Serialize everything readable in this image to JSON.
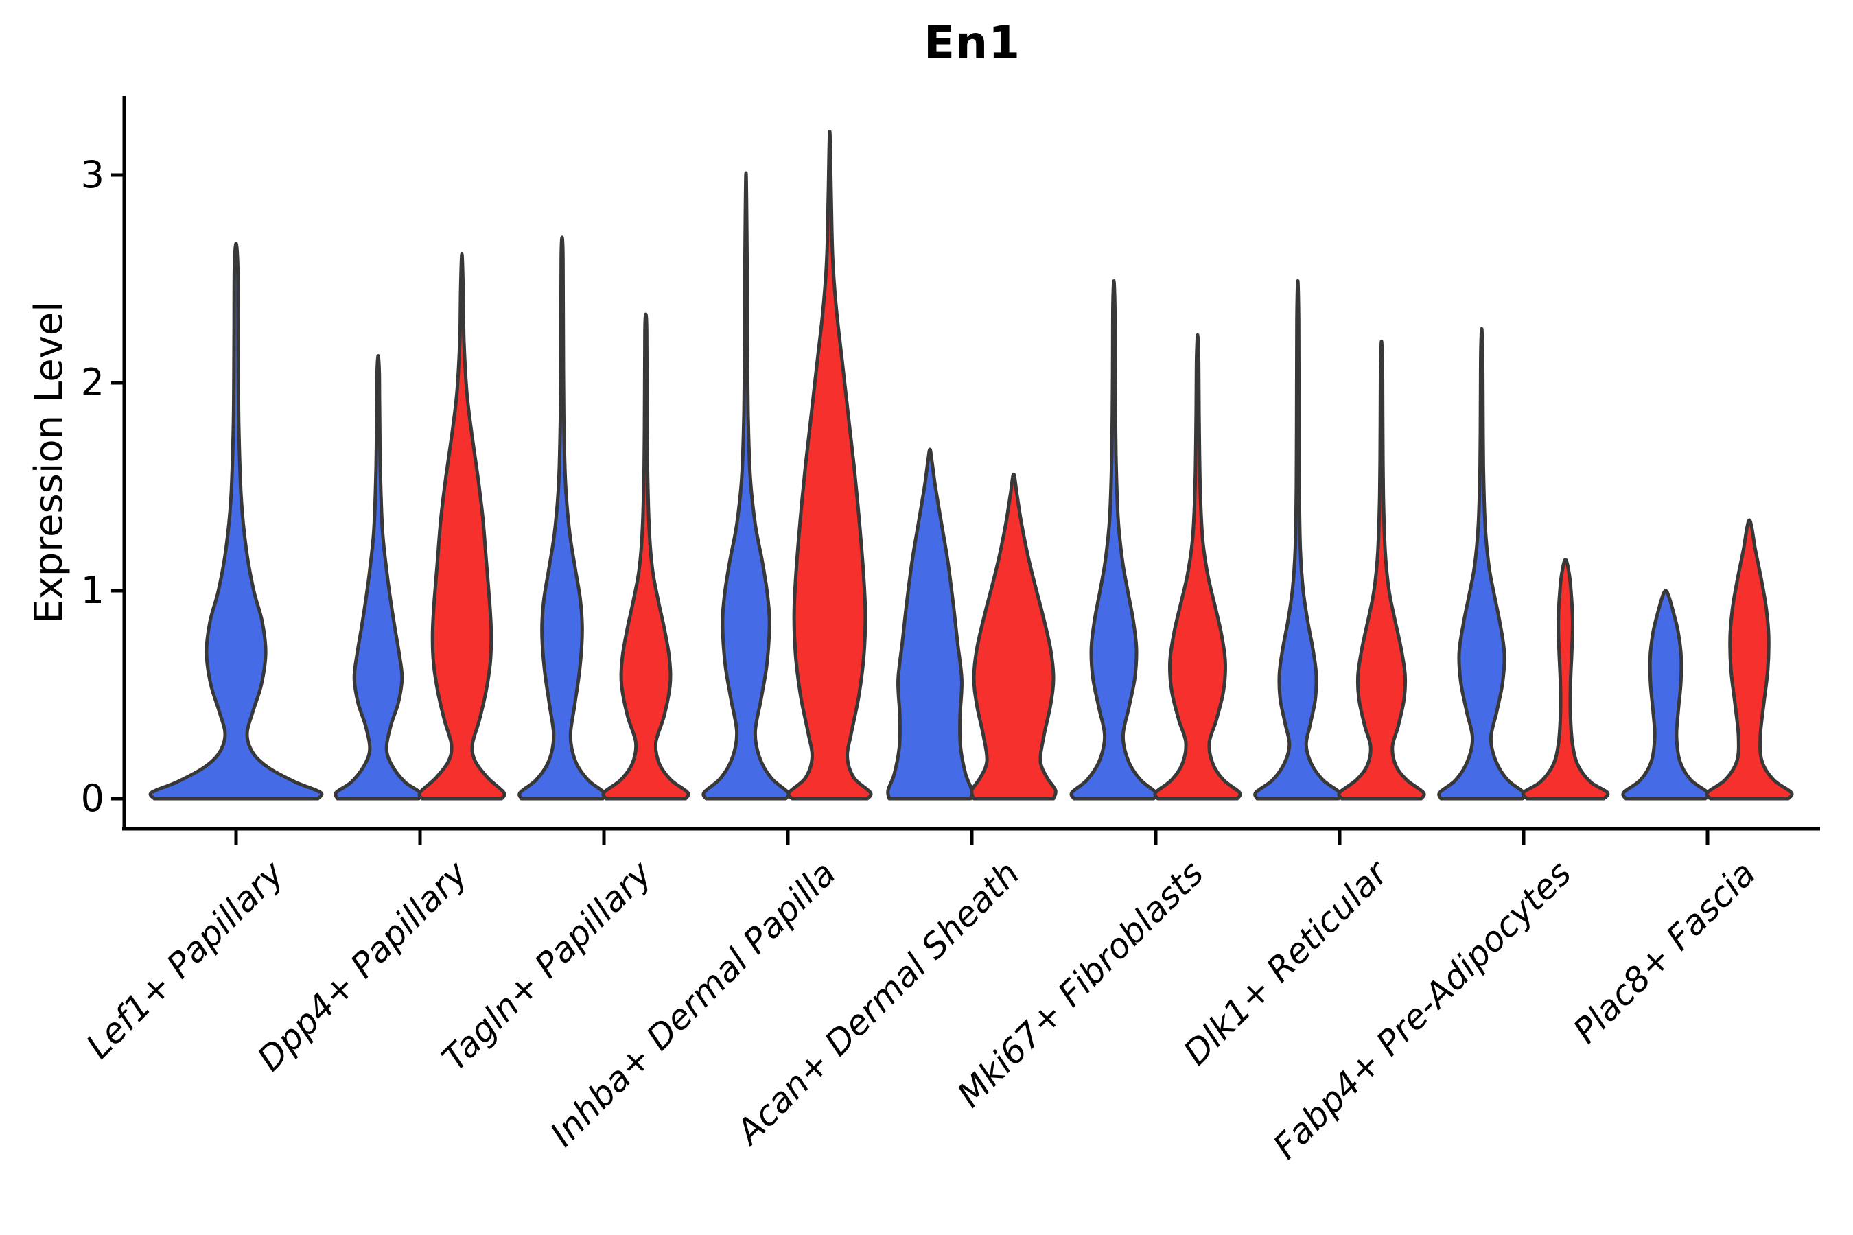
{
  "title": "En1",
  "axes": {
    "ylabel": "Expression Level",
    "y_tick_labels": [
      "0",
      "1",
      "2",
      "3"
    ],
    "y_tick_values": [
      0,
      1,
      2,
      3
    ]
  },
  "colors": {
    "blue_fill": "#466BE6",
    "red_fill": "#F5302D",
    "violin_outline": "#383838",
    "axis_color": "#000000",
    "background": "#ffffff"
  },
  "chart_data": {
    "type": "violin",
    "title": "En1",
    "ylabel": "Expression Level",
    "y_range": [
      0,
      3.42
    ],
    "grid": false,
    "legend": false,
    "split": [
      "blue",
      "red"
    ],
    "categories": [
      "Lef1+ Papillary",
      "Dpp4+ Papillary",
      "Tagln+ Papillary",
      "Inhba+ Dermal Papilla",
      "Acan+ Dermal Sheath",
      "Mki67+ Fibroblasts",
      "Dlk1+ Reticular",
      "Fabp4+ Pre-Adipocytes",
      "Plac8+ Fascia"
    ],
    "violins": [
      {
        "position": 0,
        "category": "Lef1+ Papillary",
        "split": "blue",
        "layout": "full",
        "max_expression": 2.67,
        "profile": [
          [
            0,
            0.97
          ],
          [
            0.03,
            1.0
          ],
          [
            0.08,
            0.7
          ],
          [
            0.15,
            0.38
          ],
          [
            0.22,
            0.2
          ],
          [
            0.31,
            0.13
          ],
          [
            0.42,
            0.2
          ],
          [
            0.55,
            0.3
          ],
          [
            0.7,
            0.35
          ],
          [
            0.85,
            0.31
          ],
          [
            1.0,
            0.21
          ],
          [
            1.2,
            0.12
          ],
          [
            1.45,
            0.06
          ],
          [
            1.8,
            0.032
          ],
          [
            2.2,
            0.024
          ],
          [
            2.55,
            0.02
          ],
          [
            2.67,
            0
          ]
        ]
      },
      {
        "position": 1,
        "category": "Dpp4+ Papillary",
        "split": "blue",
        "layout": "left",
        "max_expression": 2.13,
        "profile": [
          [
            0,
            0.97
          ],
          [
            0.03,
            1.0
          ],
          [
            0.08,
            0.64
          ],
          [
            0.16,
            0.33
          ],
          [
            0.24,
            0.2
          ],
          [
            0.35,
            0.3
          ],
          [
            0.46,
            0.48
          ],
          [
            0.58,
            0.57
          ],
          [
            0.7,
            0.5
          ],
          [
            0.82,
            0.4
          ],
          [
            0.95,
            0.3
          ],
          [
            1.1,
            0.2
          ],
          [
            1.3,
            0.1
          ],
          [
            1.6,
            0.05
          ],
          [
            1.9,
            0.032
          ],
          [
            2.05,
            0.026
          ],
          [
            2.13,
            0
          ]
        ]
      },
      {
        "position": 1,
        "category": "Dpp4+ Papillary",
        "split": "red",
        "layout": "right",
        "max_expression": 2.62,
        "profile": [
          [
            0,
            0.95
          ],
          [
            0.03,
            1.0
          ],
          [
            0.1,
            0.62
          ],
          [
            0.18,
            0.32
          ],
          [
            0.26,
            0.25
          ],
          [
            0.38,
            0.42
          ],
          [
            0.52,
            0.58
          ],
          [
            0.66,
            0.68
          ],
          [
            0.8,
            0.7
          ],
          [
            0.95,
            0.66
          ],
          [
            1.15,
            0.58
          ],
          [
            1.35,
            0.5
          ],
          [
            1.55,
            0.38
          ],
          [
            1.75,
            0.24
          ],
          [
            1.95,
            0.12
          ],
          [
            2.2,
            0.05
          ],
          [
            2.45,
            0.03
          ],
          [
            2.62,
            0
          ]
        ]
      },
      {
        "position": 2,
        "category": "Tagln+ Papillary",
        "split": "blue",
        "layout": "left",
        "max_expression": 2.7,
        "profile": [
          [
            0,
            0.97
          ],
          [
            0.03,
            1.0
          ],
          [
            0.09,
            0.62
          ],
          [
            0.18,
            0.32
          ],
          [
            0.3,
            0.2
          ],
          [
            0.45,
            0.3
          ],
          [
            0.62,
            0.42
          ],
          [
            0.8,
            0.48
          ],
          [
            0.95,
            0.44
          ],
          [
            1.1,
            0.32
          ],
          [
            1.28,
            0.18
          ],
          [
            1.52,
            0.08
          ],
          [
            1.85,
            0.04
          ],
          [
            2.25,
            0.028
          ],
          [
            2.6,
            0.022
          ],
          [
            2.7,
            0
          ]
        ]
      },
      {
        "position": 2,
        "category": "Tagln+ Papillary",
        "split": "red",
        "layout": "right",
        "max_expression": 2.33,
        "profile": [
          [
            0,
            0.95
          ],
          [
            0.03,
            1.0
          ],
          [
            0.09,
            0.6
          ],
          [
            0.17,
            0.32
          ],
          [
            0.27,
            0.24
          ],
          [
            0.4,
            0.44
          ],
          [
            0.55,
            0.58
          ],
          [
            0.68,
            0.56
          ],
          [
            0.82,
            0.44
          ],
          [
            0.95,
            0.3
          ],
          [
            1.1,
            0.16
          ],
          [
            1.3,
            0.08
          ],
          [
            1.6,
            0.04
          ],
          [
            1.95,
            0.028
          ],
          [
            2.25,
            0.022
          ],
          [
            2.33,
            0
          ]
        ]
      },
      {
        "position": 3,
        "category": "Inhba+ Dermal Papilla",
        "split": "blue",
        "layout": "left",
        "max_expression": 3.01,
        "profile": [
          [
            0,
            0.95
          ],
          [
            0.03,
            1.0
          ],
          [
            0.1,
            0.6
          ],
          [
            0.2,
            0.32
          ],
          [
            0.32,
            0.22
          ],
          [
            0.48,
            0.36
          ],
          [
            0.65,
            0.5
          ],
          [
            0.85,
            0.56
          ],
          [
            1.0,
            0.5
          ],
          [
            1.15,
            0.38
          ],
          [
            1.32,
            0.22
          ],
          [
            1.55,
            0.1
          ],
          [
            1.85,
            0.05
          ],
          [
            2.2,
            0.03
          ],
          [
            2.6,
            0.024
          ],
          [
            3.01,
            0
          ]
        ]
      },
      {
        "position": 3,
        "category": "Inhba+ Dermal Papilla",
        "split": "red",
        "layout": "right",
        "max_expression": 3.21,
        "profile": [
          [
            0,
            0.9
          ],
          [
            0.03,
            0.97
          ],
          [
            0.1,
            0.58
          ],
          [
            0.2,
            0.42
          ],
          [
            0.32,
            0.52
          ],
          [
            0.5,
            0.7
          ],
          [
            0.7,
            0.82
          ],
          [
            0.9,
            0.85
          ],
          [
            1.1,
            0.8
          ],
          [
            1.35,
            0.7
          ],
          [
            1.6,
            0.58
          ],
          [
            1.85,
            0.44
          ],
          [
            2.1,
            0.3
          ],
          [
            2.35,
            0.16
          ],
          [
            2.6,
            0.07
          ],
          [
            2.9,
            0.035
          ],
          [
            3.21,
            0
          ]
        ]
      },
      {
        "position": 4,
        "category": "Acan+ Dermal Sheath",
        "split": "blue",
        "layout": "left",
        "max_expression": 1.68,
        "profile": [
          [
            0,
            0.97
          ],
          [
            0.04,
            1.0
          ],
          [
            0.12,
            0.85
          ],
          [
            0.25,
            0.73
          ],
          [
            0.4,
            0.72
          ],
          [
            0.57,
            0.76
          ],
          [
            0.75,
            0.66
          ],
          [
            0.95,
            0.55
          ],
          [
            1.15,
            0.42
          ],
          [
            1.33,
            0.27
          ],
          [
            1.5,
            0.13
          ],
          [
            1.62,
            0.05
          ],
          [
            1.68,
            0
          ]
        ]
      },
      {
        "position": 4,
        "category": "Acan+ Dermal Sheath",
        "split": "red",
        "layout": "right",
        "max_expression": 1.56,
        "profile": [
          [
            0,
            0.95
          ],
          [
            0.04,
            1.0
          ],
          [
            0.1,
            0.8
          ],
          [
            0.18,
            0.64
          ],
          [
            0.3,
            0.72
          ],
          [
            0.45,
            0.88
          ],
          [
            0.58,
            0.95
          ],
          [
            0.72,
            0.88
          ],
          [
            0.88,
            0.7
          ],
          [
            1.02,
            0.52
          ],
          [
            1.16,
            0.35
          ],
          [
            1.32,
            0.19
          ],
          [
            1.46,
            0.08
          ],
          [
            1.56,
            0
          ]
        ]
      },
      {
        "position": 5,
        "category": "Mki67+ Fibroblasts",
        "split": "blue",
        "layout": "left",
        "max_expression": 2.49,
        "profile": [
          [
            0,
            0.95
          ],
          [
            0.03,
            1.0
          ],
          [
            0.09,
            0.64
          ],
          [
            0.18,
            0.35
          ],
          [
            0.3,
            0.22
          ],
          [
            0.44,
            0.36
          ],
          [
            0.58,
            0.5
          ],
          [
            0.72,
            0.54
          ],
          [
            0.86,
            0.46
          ],
          [
            1.0,
            0.33
          ],
          [
            1.15,
            0.2
          ],
          [
            1.35,
            0.1
          ],
          [
            1.65,
            0.05
          ],
          [
            2.05,
            0.03
          ],
          [
            2.35,
            0.024
          ],
          [
            2.49,
            0
          ]
        ]
      },
      {
        "position": 5,
        "category": "Mki67+ Fibroblasts",
        "split": "red",
        "layout": "right",
        "max_expression": 2.23,
        "profile": [
          [
            0,
            0.95
          ],
          [
            0.03,
            1.0
          ],
          [
            0.09,
            0.62
          ],
          [
            0.17,
            0.36
          ],
          [
            0.27,
            0.28
          ],
          [
            0.38,
            0.45
          ],
          [
            0.52,
            0.62
          ],
          [
            0.66,
            0.66
          ],
          [
            0.8,
            0.56
          ],
          [
            0.94,
            0.4
          ],
          [
            1.08,
            0.24
          ],
          [
            1.25,
            0.12
          ],
          [
            1.5,
            0.06
          ],
          [
            1.85,
            0.035
          ],
          [
            2.1,
            0.026
          ],
          [
            2.23,
            0
          ]
        ]
      },
      {
        "position": 6,
        "category": "Dlk1+ Reticular",
        "split": "blue",
        "layout": "left",
        "max_expression": 2.49,
        "profile": [
          [
            0,
            0.97
          ],
          [
            0.03,
            1.0
          ],
          [
            0.09,
            0.6
          ],
          [
            0.17,
            0.32
          ],
          [
            0.26,
            0.2
          ],
          [
            0.36,
            0.3
          ],
          [
            0.48,
            0.42
          ],
          [
            0.6,
            0.44
          ],
          [
            0.72,
            0.36
          ],
          [
            0.85,
            0.24
          ],
          [
            1.0,
            0.13
          ],
          [
            1.2,
            0.06
          ],
          [
            1.5,
            0.035
          ],
          [
            1.95,
            0.026
          ],
          [
            2.3,
            0.022
          ],
          [
            2.49,
            0
          ]
        ]
      },
      {
        "position": 6,
        "category": "Dlk1+ Reticular",
        "split": "red",
        "layout": "right",
        "max_expression": 2.2,
        "profile": [
          [
            0,
            0.95
          ],
          [
            0.03,
            1.0
          ],
          [
            0.09,
            0.6
          ],
          [
            0.16,
            0.34
          ],
          [
            0.25,
            0.26
          ],
          [
            0.35,
            0.4
          ],
          [
            0.48,
            0.54
          ],
          [
            0.6,
            0.56
          ],
          [
            0.73,
            0.46
          ],
          [
            0.86,
            0.32
          ],
          [
            1.0,
            0.18
          ],
          [
            1.18,
            0.09
          ],
          [
            1.45,
            0.045
          ],
          [
            1.8,
            0.03
          ],
          [
            2.05,
            0.024
          ],
          [
            2.2,
            0
          ]
        ]
      },
      {
        "position": 7,
        "category": "Fabp4+ Pre-Adipocytes",
        "split": "blue",
        "layout": "left",
        "max_expression": 2.26,
        "profile": [
          [
            0,
            0.97
          ],
          [
            0.03,
            1.0
          ],
          [
            0.09,
            0.62
          ],
          [
            0.18,
            0.34
          ],
          [
            0.29,
            0.22
          ],
          [
            0.42,
            0.36
          ],
          [
            0.56,
            0.5
          ],
          [
            0.7,
            0.54
          ],
          [
            0.84,
            0.44
          ],
          [
            0.98,
            0.3
          ],
          [
            1.12,
            0.17
          ],
          [
            1.32,
            0.08
          ],
          [
            1.6,
            0.04
          ],
          [
            1.95,
            0.028
          ],
          [
            2.15,
            0.022
          ],
          [
            2.26,
            0
          ]
        ]
      },
      {
        "position": 7,
        "category": "Fabp4+ Pre-Adipocytes",
        "split": "red",
        "layout": "right",
        "max_expression": 1.15,
        "profile": [
          [
            0,
            0.92
          ],
          [
            0.03,
            1.0
          ],
          [
            0.08,
            0.6
          ],
          [
            0.16,
            0.3
          ],
          [
            0.26,
            0.17
          ],
          [
            0.4,
            0.12
          ],
          [
            0.55,
            0.12
          ],
          [
            0.7,
            0.15
          ],
          [
            0.85,
            0.17
          ],
          [
            0.98,
            0.14
          ],
          [
            1.08,
            0.09
          ],
          [
            1.15,
            0
          ]
        ]
      },
      {
        "position": 8,
        "category": "Plac8+ Fascia",
        "split": "blue",
        "layout": "left",
        "max_expression": 1.0,
        "profile": [
          [
            0,
            0.95
          ],
          [
            0.03,
            1.0
          ],
          [
            0.09,
            0.6
          ],
          [
            0.18,
            0.34
          ],
          [
            0.3,
            0.26
          ],
          [
            0.42,
            0.3
          ],
          [
            0.55,
            0.36
          ],
          [
            0.68,
            0.37
          ],
          [
            0.8,
            0.3
          ],
          [
            0.9,
            0.18
          ],
          [
            0.97,
            0.08
          ],
          [
            1.0,
            0
          ]
        ]
      },
      {
        "position": 8,
        "category": "Plac8+ Fascia",
        "split": "red",
        "layout": "right",
        "max_expression": 1.34,
        "profile": [
          [
            0,
            0.93
          ],
          [
            0.03,
            1.0
          ],
          [
            0.09,
            0.58
          ],
          [
            0.18,
            0.3
          ],
          [
            0.3,
            0.26
          ],
          [
            0.45,
            0.34
          ],
          [
            0.62,
            0.44
          ],
          [
            0.78,
            0.46
          ],
          [
            0.92,
            0.4
          ],
          [
            1.06,
            0.28
          ],
          [
            1.2,
            0.14
          ],
          [
            1.3,
            0.06
          ],
          [
            1.34,
            0
          ]
        ]
      }
    ]
  }
}
